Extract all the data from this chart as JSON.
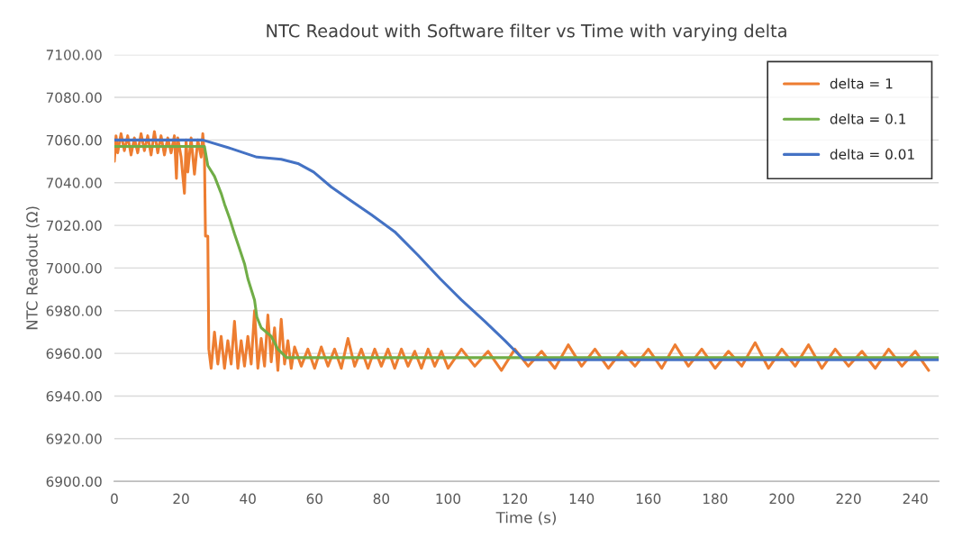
{
  "chart_data": {
    "type": "line",
    "title": "NTC Readout with Software filter vs Time with varying delta",
    "xlabel": "Time (s)",
    "ylabel": "NTC Readout (Ω)",
    "xlim": [
      0,
      247
    ],
    "xticks": [
      0,
      20,
      40,
      60,
      80,
      100,
      120,
      140,
      160,
      180,
      200,
      220,
      240
    ],
    "ylim": [
      6900,
      7100
    ],
    "yticks": [
      {
        "value": 6900,
        "label": "6900.00"
      },
      {
        "value": 6920,
        "label": "6920.00"
      },
      {
        "value": 6940,
        "label": "6940.00"
      },
      {
        "value": 6960,
        "label": "6960.00"
      },
      {
        "value": 6980,
        "label": "6980.00"
      },
      {
        "value": 7000,
        "label": "7000.00"
      },
      {
        "value": 7020,
        "label": "7020.00"
      },
      {
        "value": 7040,
        "label": "7040.00"
      },
      {
        "value": 7060,
        "label": "7060.00"
      },
      {
        "value": 7080,
        "label": "7080.00"
      },
      {
        "value": 7100,
        "label": "7100.00"
      }
    ],
    "grid": "y",
    "legend": "top right",
    "marker": "none",
    "line_style": "solid",
    "series": [
      {
        "name": "delta = 1",
        "color": "#ed7d31",
        "x": [
          0,
          0.5,
          1,
          2,
          3,
          4,
          5,
          6,
          7,
          8,
          9,
          10,
          11,
          12,
          13,
          14,
          15,
          16,
          17,
          18,
          18.6,
          19,
          20,
          21,
          21.5,
          22,
          23,
          24,
          25,
          26,
          26.5,
          27,
          27.3,
          28,
          28.3,
          29,
          30,
          31,
          32,
          33,
          34,
          35,
          36,
          37,
          38,
          39,
          40,
          41,
          42,
          43,
          44,
          45,
          46,
          47,
          48,
          49,
          50,
          51,
          52,
          53,
          54,
          56,
          58,
          60,
          62,
          64,
          66,
          68,
          70,
          72,
          74,
          76,
          78,
          80,
          82,
          84,
          86,
          88,
          90,
          92,
          94,
          96,
          98,
          100,
          104,
          108,
          112,
          116,
          120,
          124,
          128,
          132,
          136,
          140,
          144,
          148,
          152,
          156,
          160,
          164,
          168,
          172,
          176,
          180,
          184,
          188,
          192,
          196,
          200,
          204,
          208,
          212,
          216,
          220,
          224,
          228,
          232,
          236,
          240,
          244
        ],
        "values": [
          7050,
          7062,
          7054,
          7063,
          7055,
          7062,
          7053,
          7061,
          7054,
          7063,
          7055,
          7062,
          7053,
          7064,
          7054,
          7062,
          7053,
          7061,
          7054,
          7062,
          7042,
          7061,
          7052,
          7035,
          7060,
          7045,
          7061,
          7044,
          7060,
          7052,
          7063,
          7052,
          7015,
          7015,
          6962,
          6953,
          6970,
          6955,
          6968,
          6953,
          6966,
          6955,
          6975,
          6953,
          6966,
          6954,
          6968,
          6955,
          6980,
          6953,
          6967,
          6954,
          6978,
          6956,
          6972,
          6952,
          6976,
          6955,
          6966,
          6953,
          6963,
          6954,
          6962,
          6953,
          6963,
          6954,
          6962,
          6953,
          6967,
          6954,
          6962,
          6953,
          6962,
          6954,
          6962,
          6953,
          6962,
          6954,
          6961,
          6953,
          6962,
          6954,
          6961,
          6953,
          6962,
          6954,
          6961,
          6952,
          6962,
          6954,
          6961,
          6953,
          6964,
          6954,
          6962,
          6953,
          6961,
          6954,
          6962,
          6953,
          6964,
          6954,
          6962,
          6953,
          6961,
          6954,
          6965,
          6953,
          6962,
          6954,
          6964,
          6953,
          6962,
          6954,
          6961,
          6953,
          6962,
          6954,
          6961,
          6952
        ]
      },
      {
        "name": "delta = 0.1",
        "color": "#70ad47",
        "x": [
          0,
          27,
          28,
          30,
          32,
          33,
          34.6,
          36,
          37.3,
          39,
          40,
          42,
          42.7,
          44,
          47,
          49,
          51.6,
          53,
          247
        ],
        "values": [
          7057,
          7057,
          7048,
          7043,
          7035,
          7030,
          7023,
          7016,
          7010,
          7002,
          6995,
          6985,
          6977,
          6972,
          6968,
          6962,
          6958,
          6958,
          6958
        ]
      },
      {
        "name": "delta = 0.01",
        "color": "#4472c4",
        "x": [
          0,
          26.5,
          35,
          42.7,
          50,
          55,
          59.7,
          65,
          70.5,
          77,
          84,
          91,
          97.6,
          104,
          111,
          117,
          122.7,
          247
        ],
        "values": [
          7060,
          7060,
          7056,
          7052,
          7051,
          7049,
          7045,
          7038,
          7032,
          7025,
          7017,
          7006,
          6995,
          6985,
          6975,
          6966,
          6957,
          6957
        ]
      }
    ]
  }
}
